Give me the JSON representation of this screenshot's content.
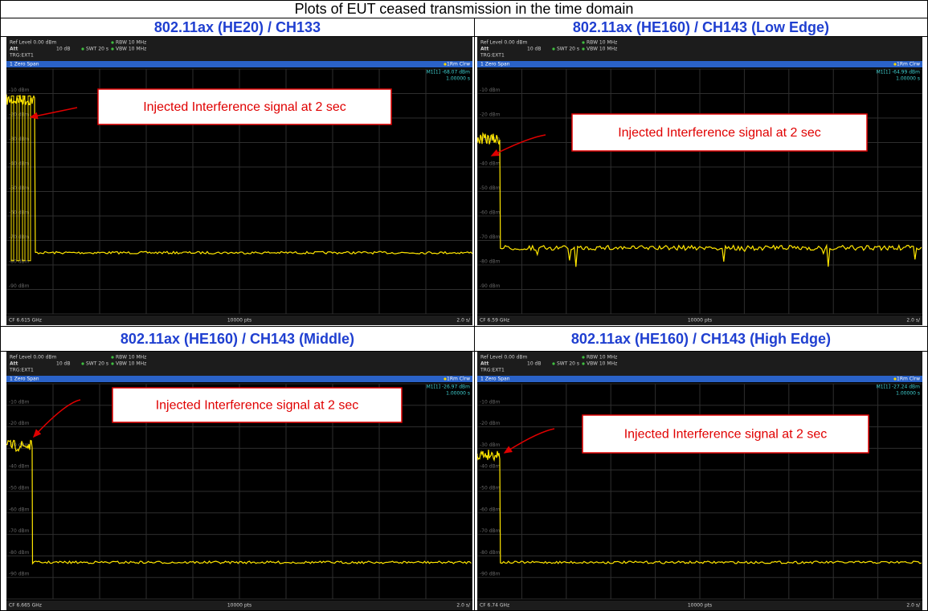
{
  "title": "Plots of EUT ceased transmission in the time domain",
  "panels": [
    {
      "heading": "802.11ax (HE20) / CH133",
      "ref_level": "Ref Level 0.00 dBm",
      "att_label": "Att",
      "att": "10 dB",
      "swt": "SWT 20 s",
      "rbw": "RBW 10 MHz",
      "vbw": "VBW 10 MHz",
      "trigger": "TRG:EXT1",
      "span": "1 Zero Span",
      "trace": "1Rm Clrw",
      "marker": "M1[1] -68.07 dBm",
      "marker_time": "1.00000 s",
      "cf": "CF 6.615 GHz",
      "points": "10000 pts",
      "scale": "2.0 s/",
      "grid_labels": [
        "-10 dBm",
        "-20 dBm",
        "-30 dBm",
        "-40 dBm",
        "-50 dBm",
        "-60 dBm",
        "-70 dBm",
        "-80 dBm",
        "-90 dBm"
      ],
      "annotation": "Injected Interference signal at 2 sec"
    },
    {
      "heading": "802.11ax (HE160) / CH143 (Low Edge)",
      "ref_level": "Ref Level 0.00 dBm",
      "att_label": "Att",
      "att": "10 dB",
      "swt": "SWT 20 s",
      "rbw": "RBW 10 MHz",
      "vbw": "VBW 10 MHz",
      "trigger": "TRG:EXT1",
      "span": "1 Zero Span",
      "trace": "1Rm Clrw",
      "marker": "M1[1] -64.99 dBm",
      "marker_time": "1.00000 s",
      "cf": "CF 6.59 GHz",
      "points": "10000 pts",
      "scale": "2.0 s/",
      "grid_labels": [
        "-10 dBm",
        "-20 dBm",
        "-30 dBm",
        "-40 dBm",
        "-50 dBm",
        "-60 dBm",
        "-70 dBm",
        "-80 dBm",
        "-90 dBm"
      ],
      "annotation": "Injected Interference signal at 2 sec"
    },
    {
      "heading": "802.11ax (HE160) / CH143 (Middle)",
      "ref_level": "Ref Level 0.00 dBm",
      "att_label": "Att",
      "att": "10 dB",
      "swt": "SWT 20 s",
      "rbw": "RBW 10 MHz",
      "vbw": "VBW 10 MHz",
      "trigger": "TRG:EXT1",
      "span": "1 Zero Span",
      "trace": "1Rm Clrw",
      "marker": "M1[1] -26.97 dBm",
      "marker_time": "1.00000 s",
      "cf": "CF 6.665 GHz",
      "points": "10000 pts",
      "scale": "2.0 s/",
      "grid_labels": [
        "-10 dBm",
        "-20 dBm",
        "-30 dBm",
        "-40 dBm",
        "-50 dBm",
        "-60 dBm",
        "-70 dBm",
        "-80 dBm",
        "-90 dBm"
      ],
      "annotation": "Injected Interference signal at 2 sec"
    },
    {
      "heading": "802.11ax (HE160) / CH143 (High Edge)",
      "ref_level": "Ref Level 0.00 dBm",
      "att_label": "Att",
      "att": "10 dB",
      "swt": "SWT 20 s",
      "rbw": "RBW 10 MHz",
      "vbw": "VBW 10 MHz",
      "trigger": "TRG:EXT1",
      "span": "1 Zero Span",
      "trace": "1Rm Clrw",
      "marker": "M1[1] -27.24 dBm",
      "marker_time": "1.00000 s",
      "cf": "CF 6.74 GHz",
      "points": "10000 pts",
      "scale": "2.0 s/",
      "grid_labels": [
        "-10 dBm",
        "-20 dBm",
        "-30 dBm",
        "-40 dBm",
        "-50 dBm",
        "-60 dBm",
        "-70 dBm",
        "-80 dBm",
        "-90 dBm"
      ],
      "annotation": "Injected Interference signal at 2 sec"
    }
  ]
}
